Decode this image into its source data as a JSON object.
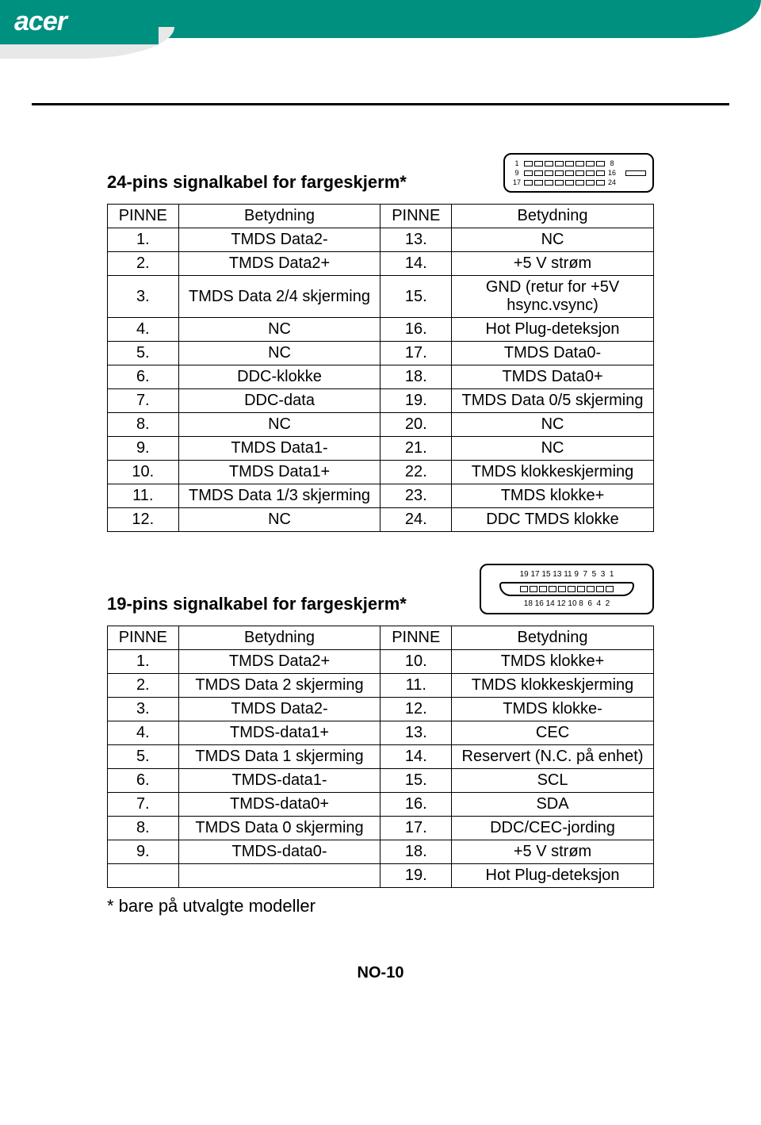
{
  "logo_text": "acer",
  "section1": {
    "title": "24-pins signalkabel for fargeskjerm*",
    "headers": [
      "PINNE",
      "Betydning",
      "PINNE",
      "Betydning"
    ],
    "rows": [
      [
        "1.",
        "TMDS Data2-",
        "13.",
        "NC"
      ],
      [
        "2.",
        "TMDS Data2+",
        "14.",
        "+5 V strøm"
      ],
      [
        "3.",
        "TMDS Data 2/4 skjerming",
        "15.",
        "GND (retur for +5V hsync.vsync)"
      ],
      [
        "4.",
        "NC",
        "16.",
        "Hot Plug-deteksjon"
      ],
      [
        "5.",
        "NC",
        "17.",
        "TMDS Data0-"
      ],
      [
        "6.",
        "DDC-klokke",
        "18.",
        "TMDS Data0+"
      ],
      [
        "7.",
        "DDC-data",
        "19.",
        "TMDS Data 0/5 skjerming"
      ],
      [
        "8.",
        "NC",
        "20.",
        "NC"
      ],
      [
        "9.",
        "TMDS Data1-",
        "21.",
        "NC"
      ],
      [
        "10.",
        "TMDS Data1+",
        "22.",
        "TMDS klokkeskjerming"
      ],
      [
        "11.",
        "TMDS Data 1/3 skjerming",
        "23.",
        "TMDS klokke+"
      ],
      [
        "12.",
        "NC",
        "24.",
        "DDC TMDS klokke"
      ]
    ],
    "diagram_labels": {
      "top_left": "1",
      "top_right": "8",
      "mid_left": "9",
      "mid_right": "16",
      "bot_left": "17",
      "bot_right": "24"
    }
  },
  "section2": {
    "title": "19-pins signalkabel for fargeskjerm*",
    "headers": [
      "PINNE",
      "Betydning",
      "PINNE",
      "Betydning"
    ],
    "rows": [
      [
        "1.",
        "TMDS Data2+",
        "10.",
        "TMDS klokke+"
      ],
      [
        "2.",
        "TMDS Data 2 skjerming",
        "11.",
        "TMDS klokkeskjerming"
      ],
      [
        "3.",
        "TMDS Data2-",
        "12.",
        "TMDS klokke-"
      ],
      [
        "4.",
        "TMDS-data1+",
        "13.",
        "CEC"
      ],
      [
        "5.",
        "TMDS Data 1 skjerming",
        "14.",
        "Reservert (N.C. på enhet)"
      ],
      [
        "6.",
        "TMDS-data1-",
        "15.",
        "SCL"
      ],
      [
        "7.",
        "TMDS-data0+",
        "16.",
        "SDA"
      ],
      [
        "8.",
        "TMDS Data 0 skjerming",
        "17.",
        "DDC/CEC-jording"
      ],
      [
        "9.",
        "TMDS-data0-",
        "18.",
        "+5 V strøm"
      ],
      [
        "",
        "",
        "19.",
        "Hot Plug-deteksjon"
      ]
    ],
    "diagram_top_row": "19 17 15 13 11 9  7  5  3  1",
    "diagram_bot_row": "18 16 14 12 10 8  6  4  2"
  },
  "footnote": "* bare på utvalgte modeller",
  "page_number": "NO-10"
}
